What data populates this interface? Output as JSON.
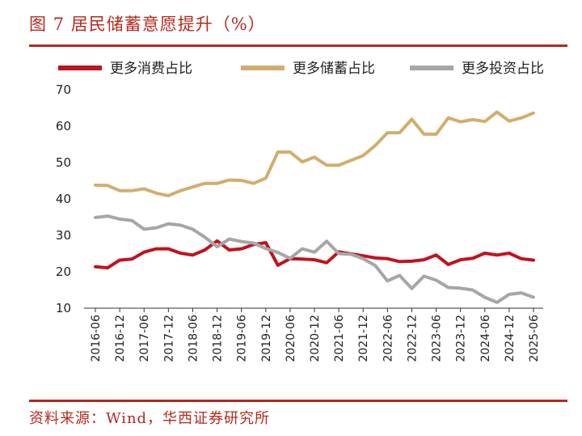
{
  "title": "图 7 居民储蓄意愿提升（%）",
  "source": "资料来源：Wind，华西证券研究所",
  "colors": {
    "red": "#c1121f",
    "gold": "#d2ae6d",
    "gray": "#a6a6a6",
    "accent": "#b8281e"
  },
  "chart_data": {
    "type": "line",
    "title": "居民储蓄意愿提升（%）",
    "xlabel": "",
    "ylabel": "",
    "ylim": [
      10,
      70
    ],
    "yticks": [
      10,
      20,
      30,
      40,
      50,
      60,
      70
    ],
    "x": [
      "2016-06",
      "2016-09",
      "2016-12",
      "2017-03",
      "2017-06",
      "2017-09",
      "2017-12",
      "2018-03",
      "2018-06",
      "2018-09",
      "2018-12",
      "2019-03",
      "2019-06",
      "2019-09",
      "2019-12",
      "2020-03",
      "2020-06",
      "2020-09",
      "2020-12",
      "2021-03",
      "2021-06",
      "2021-09",
      "2021-12",
      "2022-03",
      "2022-06",
      "2022-09",
      "2022-12",
      "2023-03",
      "2023-06",
      "2023-09",
      "2023-12",
      "2024-03",
      "2024-06",
      "2024-09",
      "2024-12",
      "2025-03",
      "2025-06"
    ],
    "xtick_labels": [
      "2016-06",
      "2016-12",
      "2017-06",
      "2017-12",
      "2018-06",
      "2018-12",
      "2019-06",
      "2019-12",
      "2020-06",
      "2020-12",
      "2021-06",
      "2021-12",
      "2022-06",
      "2022-12",
      "2023-06",
      "2023-12",
      "2024-06",
      "2024-12",
      "2025-06"
    ],
    "legend_position": "top",
    "series": [
      {
        "name": "更多消费占比",
        "color": "#c1121f",
        "values": [
          21.4,
          21.1,
          23.2,
          23.5,
          25.4,
          26.3,
          26.3,
          25.1,
          24.6,
          26.0,
          28.5,
          26.0,
          26.3,
          27.5,
          28.0,
          21.8,
          23.6,
          23.5,
          23.3,
          22.5,
          25.5,
          24.9,
          24.4,
          23.8,
          23.6,
          22.8,
          22.9,
          23.3,
          24.6,
          22.0,
          23.3,
          23.7,
          25.1,
          24.6,
          25.1,
          23.6,
          23.2
        ]
      },
      {
        "name": "更多储蓄占比",
        "color": "#d2ae6d",
        "values": [
          43.8,
          43.7,
          42.3,
          42.3,
          42.8,
          41.6,
          40.9,
          42.3,
          43.3,
          44.3,
          44.3,
          45.2,
          45.1,
          44.3,
          45.7,
          52.9,
          52.9,
          50.2,
          51.5,
          49.3,
          49.3,
          50.6,
          51.9,
          54.7,
          58.2,
          58.2,
          61.9,
          57.8,
          57.8,
          62.3,
          61.2,
          61.8,
          61.3,
          63.9,
          61.4,
          62.3,
          63.6
        ]
      },
      {
        "name": "更多投资占比",
        "color": "#a6a6a6",
        "values": [
          34.9,
          35.3,
          34.5,
          34.1,
          31.7,
          32.1,
          33.2,
          32.8,
          31.7,
          29.5,
          26.9,
          29.0,
          28.3,
          27.9,
          26.4,
          25.3,
          23.7,
          26.3,
          25.4,
          28.4,
          25.0,
          24.8,
          23.6,
          21.7,
          17.5,
          19.0,
          15.4,
          18.8,
          17.7,
          15.7,
          15.5,
          15.0,
          13.0,
          11.6,
          13.8,
          14.2,
          13.0
        ]
      }
    ]
  }
}
